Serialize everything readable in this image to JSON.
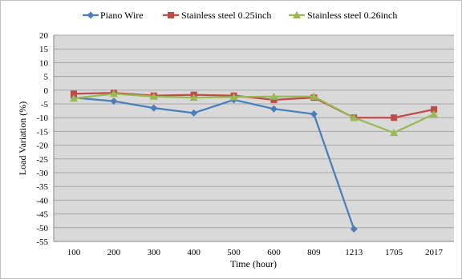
{
  "chart_data": {
    "type": "line",
    "title": "",
    "xlabel": "Time (hour)",
    "ylabel": "Load Variation (%)",
    "categories": [
      "100",
      "200",
      "300",
      "400",
      "500",
      "600",
      "809",
      "1213",
      "1705",
      "2017"
    ],
    "ylim": [
      -55,
      20
    ],
    "ytick_step": 5,
    "grid": true,
    "legend_position": "top",
    "plot_background": "#d9d9d9",
    "series": [
      {
        "name": "Piano Wire",
        "color": "#4a7ebb",
        "marker": "diamond",
        "values": [
          -2.7,
          -4.0,
          -6.5,
          -8.3,
          -3.5,
          -6.8,
          -8.7,
          -50.5,
          null,
          null
        ]
      },
      {
        "name": "Stainless steel 0.25inch",
        "color": "#be4b48",
        "marker": "square",
        "values": [
          -1.3,
          -1.0,
          -2.0,
          -1.7,
          -2.0,
          -3.5,
          -2.7,
          -10.0,
          -10.0,
          -7.0
        ]
      },
      {
        "name": "Stainless steel 0.26inch",
        "color": "#98b954",
        "marker": "triangle",
        "values": [
          -3.0,
          -1.3,
          -2.3,
          -2.7,
          -2.5,
          -2.3,
          -2.3,
          -10.0,
          -15.5,
          -8.7
        ]
      }
    ]
  }
}
